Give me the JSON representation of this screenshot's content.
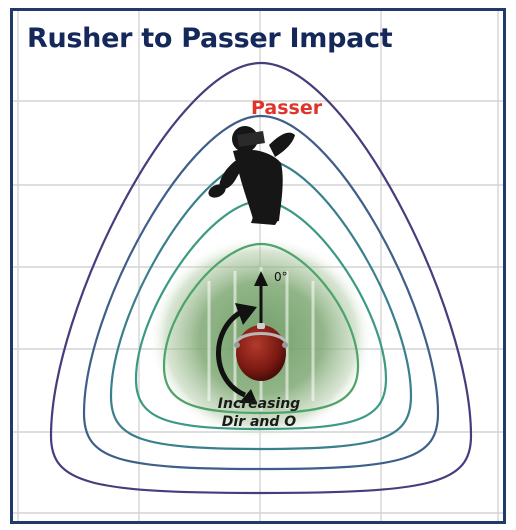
{
  "title": "Rusher to Passer Impact",
  "passer_label": "Passer",
  "rusher": {
    "angle_label": "0°",
    "caption_line1": "Increasing",
    "caption_line2": "Dir and O"
  },
  "colors": {
    "title": "#14285a",
    "passer_label": "#e0332a",
    "frame_border": "#1f3a6b",
    "contours": [
      "#4ea46a",
      "#3a9a83",
      "#3a7f8c",
      "#3f5e88",
      "#453d7c"
    ],
    "field_green": "#6b9a62",
    "helmet": "#8a1c14"
  },
  "icons": [
    "passer-silhouette-icon",
    "rusher-helmet-icon",
    "rotation-arrow-icon",
    "direction-arrow-icon"
  ]
}
